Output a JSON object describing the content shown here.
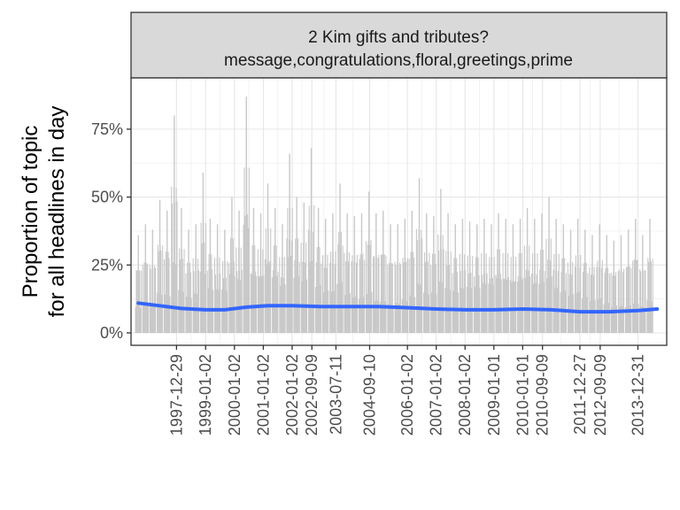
{
  "chart_data": {
    "type": "line",
    "facet_title": "2 Kim gifts and tributes?",
    "facet_subtitle": "message,congratulations,floral,greetings,prime",
    "ylabel_line1": "Proportion of topic",
    "ylabel_line2": "for all headlines in day",
    "xlabel": "",
    "ylim": [
      0,
      0.88
    ],
    "xlim": [
      "1996-06-01",
      "2014-12-31"
    ],
    "y_ticks": [
      {
        "value": 0,
        "label": "0%"
      },
      {
        "value": 0.25,
        "label": "25%"
      },
      {
        "value": 0.5,
        "label": "50%"
      },
      {
        "value": 0.75,
        "label": "75%"
      }
    ],
    "x_ticks": [
      "1997-12-29",
      "1999-01-02",
      "2000-01-02",
      "2001-01-02",
      "2002-01-02",
      "2002-09-09",
      "2003-07-11",
      "2004-09-10",
      "2006-01-02",
      "2007-01-02",
      "2008-01-02",
      "2009-01-01",
      "2010-01-01",
      "2010-09-09",
      "2011-12-27",
      "2012-09-09",
      "2013-12-31"
    ],
    "grid": true,
    "series": [
      {
        "kind": "daily proportion",
        "color": "#c8c8c8",
        "x": [
          "1996-09-01",
          "1996-12-01",
          "1997-03-01",
          "1997-06-01",
          "1997-09-01",
          "1997-12-01",
          "1998-03-01",
          "1998-06-01",
          "1998-09-01",
          "1998-12-01",
          "1999-03-01",
          "1999-06-01",
          "1999-09-01",
          "1999-12-01",
          "2000-03-01",
          "2000-06-01",
          "2000-09-01",
          "2000-12-01",
          "2001-03-01",
          "2001-06-01",
          "2001-09-01",
          "2001-12-01",
          "2002-03-01",
          "2002-06-01",
          "2002-09-01",
          "2002-12-01",
          "2003-03-01",
          "2003-06-01",
          "2003-09-01",
          "2003-12-01",
          "2004-03-01",
          "2004-06-01",
          "2004-09-01",
          "2004-12-01",
          "2005-03-01",
          "2005-06-01",
          "2005-09-01",
          "2005-12-01",
          "2006-03-01",
          "2006-06-01",
          "2006-09-01",
          "2006-12-01",
          "2007-03-01",
          "2007-06-01",
          "2007-09-01",
          "2007-12-01",
          "2008-03-01",
          "2008-06-01",
          "2008-09-01",
          "2008-12-01",
          "2009-03-01",
          "2009-06-01",
          "2009-09-01",
          "2009-12-01",
          "2010-03-01",
          "2010-06-01",
          "2010-09-01",
          "2010-12-01",
          "2011-03-01",
          "2011-06-01",
          "2011-09-01",
          "2011-12-01",
          "2012-03-01",
          "2012-06-01",
          "2012-09-01",
          "2012-12-01",
          "2013-03-01",
          "2013-06-01",
          "2013-09-01",
          "2013-12-01",
          "2014-03-01",
          "2014-06-01"
        ],
        "y": [
          0.36,
          0.4,
          0.38,
          0.49,
          0.45,
          0.8,
          0.46,
          0.38,
          0.4,
          0.59,
          0.42,
          0.4,
          0.38,
          0.5,
          0.45,
          0.87,
          0.46,
          0.44,
          0.55,
          0.46,
          0.4,
          0.66,
          0.5,
          0.48,
          0.68,
          0.46,
          0.42,
          0.44,
          0.55,
          0.44,
          0.43,
          0.44,
          0.52,
          0.44,
          0.45,
          0.4,
          0.4,
          0.42,
          0.45,
          0.57,
          0.44,
          0.43,
          0.53,
          0.44,
          0.4,
          0.42,
          0.41,
          0.4,
          0.42,
          0.4,
          0.44,
          0.42,
          0.4,
          0.42,
          0.46,
          0.42,
          0.44,
          0.5,
          0.42,
          0.4,
          0.38,
          0.42,
          0.38,
          0.36,
          0.4,
          0.36,
          0.34,
          0.36,
          0.38,
          0.42,
          0.36,
          0.42
        ],
        "y_low": [
          0,
          0.03,
          0,
          0.02,
          0,
          0,
          0.02,
          0,
          0,
          0.01,
          0,
          0.02,
          0,
          0,
          0.01,
          0,
          0.02,
          0,
          0,
          0.01,
          0,
          0.02,
          0,
          0,
          0.02,
          0,
          0.03,
          0,
          0,
          0.02,
          0,
          0.01,
          0,
          0,
          0.02,
          0,
          0,
          0.03,
          0,
          0.01,
          0,
          0,
          0.02,
          0,
          0.01,
          0,
          0,
          0.02,
          0,
          0.01,
          0,
          0,
          0.02,
          0,
          0.01,
          0,
          0.02,
          0,
          0.01,
          0,
          0.02,
          0,
          0.01,
          0.02,
          0,
          0.01,
          0,
          0.02,
          0.01,
          0,
          0.02,
          0
        ]
      },
      {
        "kind": "smoothed trend",
        "color": "#3366ff",
        "x": [
          "1996-09-01",
          "1997-06-01",
          "1998-03-01",
          "1999-01-01",
          "1999-09-01",
          "2000-06-01",
          "2001-03-01",
          "2002-01-01",
          "2003-01-01",
          "2004-01-01",
          "2005-01-01",
          "2006-01-01",
          "2007-01-01",
          "2008-01-01",
          "2009-01-01",
          "2010-01-01",
          "2011-01-01",
          "2012-01-01",
          "2013-01-01",
          "2014-01-01",
          "2014-09-01"
        ],
        "y": [
          0.11,
          0.1,
          0.09,
          0.085,
          0.085,
          0.095,
          0.1,
          0.1,
          0.097,
          0.097,
          0.097,
          0.093,
          0.088,
          0.085,
          0.085,
          0.088,
          0.085,
          0.078,
          0.078,
          0.082,
          0.088
        ]
      }
    ]
  }
}
